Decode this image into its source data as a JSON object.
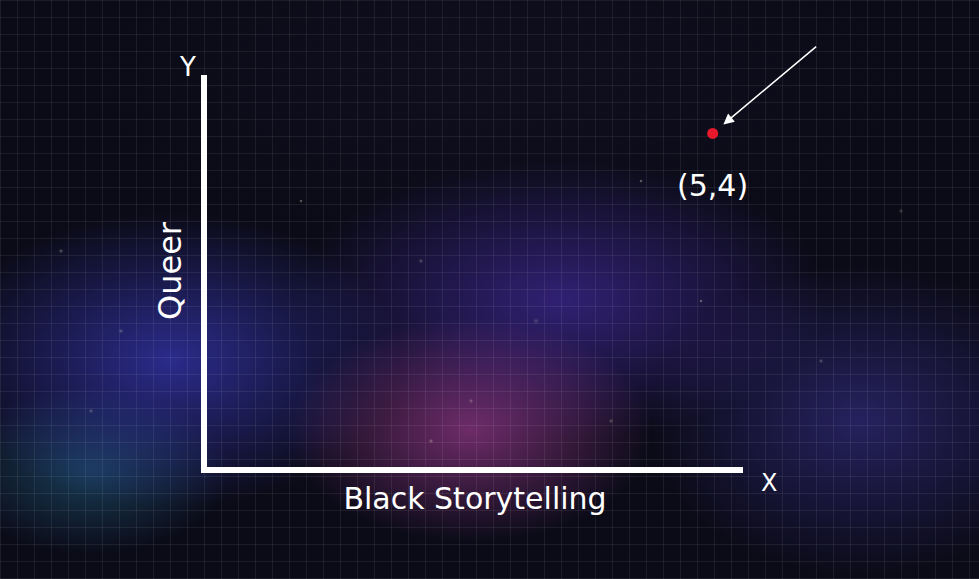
{
  "chart_data": {
    "type": "scatter",
    "x_label": "Black Storytelling",
    "y_label": "Queer",
    "x": [
      5
    ],
    "values": [
      4
    ],
    "color": "#e8192c",
    "marker": "circle",
    "xlim": [
      0,
      5.3
    ],
    "ylim": [
      0,
      4.7
    ],
    "tick_labels": false,
    "annotations": [
      {
        "text": "Y",
        "axis": "y"
      },
      {
        "text": "X",
        "axis": "x"
      },
      {
        "text": "(5,4)",
        "x": 5,
        "y": 4
      }
    ]
  }
}
